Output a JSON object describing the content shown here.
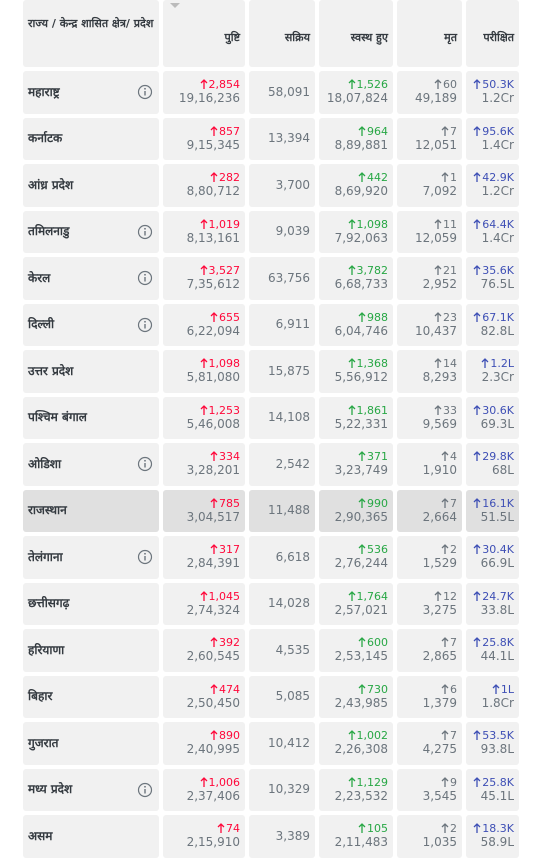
{
  "table": {
    "header": [
      "राज्य / केन्द्र शासित क्षेत्र/ प्रदेश",
      "पुष्टि",
      "सक्रिय",
      "स्वस्थ हुए",
      "मृत",
      "परीक्षित"
    ],
    "rows": [
      {
        "state": "महाराष्ट्र",
        "info": true,
        "confirmed_delta": "2,854",
        "confirmed": "19,16,236",
        "active": "58,091",
        "recovered_delta": "1,526",
        "recovered": "18,07,824",
        "deceased_delta": "60",
        "deceased": "49,189",
        "tested_delta": "50.3K",
        "tested": "1.2Cr"
      },
      {
        "state": "कर्नाटक",
        "info": false,
        "confirmed_delta": "857",
        "confirmed": "9,15,345",
        "active": "13,394",
        "recovered_delta": "964",
        "recovered": "8,89,881",
        "deceased_delta": "7",
        "deceased": "12,051",
        "tested_delta": "95.6K",
        "tested": "1.4Cr"
      },
      {
        "state": "आंध्र प्रदेश",
        "info": false,
        "confirmed_delta": "282",
        "confirmed": "8,80,712",
        "active": "3,700",
        "recovered_delta": "442",
        "recovered": "8,69,920",
        "deceased_delta": "1",
        "deceased": "7,092",
        "tested_delta": "42.9K",
        "tested": "1.2Cr"
      },
      {
        "state": "तमिलनाडु",
        "info": true,
        "confirmed_delta": "1,019",
        "confirmed": "8,13,161",
        "active": "9,039",
        "recovered_delta": "1,098",
        "recovered": "7,92,063",
        "deceased_delta": "11",
        "deceased": "12,059",
        "tested_delta": "64.4K",
        "tested": "1.4Cr"
      },
      {
        "state": "केरल",
        "info": true,
        "confirmed_delta": "3,527",
        "confirmed": "7,35,612",
        "active": "63,756",
        "recovered_delta": "3,782",
        "recovered": "6,68,733",
        "deceased_delta": "21",
        "deceased": "2,952",
        "tested_delta": "35.6K",
        "tested": "76.5L"
      },
      {
        "state": "दिल्ली",
        "info": true,
        "confirmed_delta": "655",
        "confirmed": "6,22,094",
        "active": "6,911",
        "recovered_delta": "988",
        "recovered": "6,04,746",
        "deceased_delta": "23",
        "deceased": "10,437",
        "tested_delta": "67.1K",
        "tested": "82.8L"
      },
      {
        "state": "उत्तर प्रदेश",
        "info": false,
        "confirmed_delta": "1,098",
        "confirmed": "5,81,080",
        "active": "15,875",
        "recovered_delta": "1,368",
        "recovered": "5,56,912",
        "deceased_delta": "14",
        "deceased": "8,293",
        "tested_delta": "1.2L",
        "tested": "2.3Cr"
      },
      {
        "state": "पश्चिम बंगाल",
        "info": false,
        "confirmed_delta": "1,253",
        "confirmed": "5,46,008",
        "active": "14,108",
        "recovered_delta": "1,861",
        "recovered": "5,22,331",
        "deceased_delta": "33",
        "deceased": "9,569",
        "tested_delta": "30.6K",
        "tested": "69.3L"
      },
      {
        "state": "ओडिशा",
        "info": true,
        "confirmed_delta": "334",
        "confirmed": "3,28,201",
        "active": "2,542",
        "recovered_delta": "371",
        "recovered": "3,23,749",
        "deceased_delta": "4",
        "deceased": "1,910",
        "tested_delta": "29.8K",
        "tested": "68L"
      },
      {
        "state": "राजस्थान",
        "info": false,
        "highlighted": true,
        "confirmed_delta": "785",
        "confirmed": "3,04,517",
        "active": "11,488",
        "recovered_delta": "990",
        "recovered": "2,90,365",
        "deceased_delta": "7",
        "deceased": "2,664",
        "tested_delta": "16.1K",
        "tested": "51.5L"
      },
      {
        "state": "तेलंगाना",
        "info": true,
        "confirmed_delta": "317",
        "confirmed": "2,84,391",
        "active": "6,618",
        "recovered_delta": "536",
        "recovered": "2,76,244",
        "deceased_delta": "2",
        "deceased": "1,529",
        "tested_delta": "30.4K",
        "tested": "66.9L"
      },
      {
        "state": "छत्तीसगढ़",
        "info": false,
        "confirmed_delta": "1,045",
        "confirmed": "2,74,324",
        "active": "14,028",
        "recovered_delta": "1,764",
        "recovered": "2,57,021",
        "deceased_delta": "12",
        "deceased": "3,275",
        "tested_delta": "24.7K",
        "tested": "33.8L"
      },
      {
        "state": "हरियाणा",
        "info": false,
        "confirmed_delta": "392",
        "confirmed": "2,60,545",
        "active": "4,535",
        "recovered_delta": "600",
        "recovered": "2,53,145",
        "deceased_delta": "7",
        "deceased": "2,865",
        "tested_delta": "25.8K",
        "tested": "44.1L"
      },
      {
        "state": "बिहार",
        "info": false,
        "confirmed_delta": "474",
        "confirmed": "2,50,450",
        "active": "5,085",
        "recovered_delta": "730",
        "recovered": "2,43,985",
        "deceased_delta": "6",
        "deceased": "1,379",
        "tested_delta": "1L",
        "tested": "1.8Cr"
      },
      {
        "state": "गुजरात",
        "info": false,
        "confirmed_delta": "890",
        "confirmed": "2,40,995",
        "active": "10,412",
        "recovered_delta": "1,002",
        "recovered": "2,26,308",
        "deceased_delta": "7",
        "deceased": "4,275",
        "tested_delta": "53.5K",
        "tested": "93.8L"
      },
      {
        "state": "मध्य प्रदेश",
        "info": true,
        "confirmed_delta": "1,006",
        "confirmed": "2,37,406",
        "active": "10,329",
        "recovered_delta": "1,129",
        "recovered": "2,23,532",
        "deceased_delta": "9",
        "deceased": "3,545",
        "tested_delta": "25.8K",
        "tested": "45.1L"
      },
      {
        "state": "असम",
        "info": false,
        "confirmed_delta": "74",
        "confirmed": "2,15,910",
        "active": "3,389",
        "recovered_delta": "105",
        "recovered": "2,11,483",
        "deceased_delta": "2",
        "deceased": "1,035",
        "tested_delta": "18.3K",
        "tested": "58.9L"
      }
    ]
  }
}
